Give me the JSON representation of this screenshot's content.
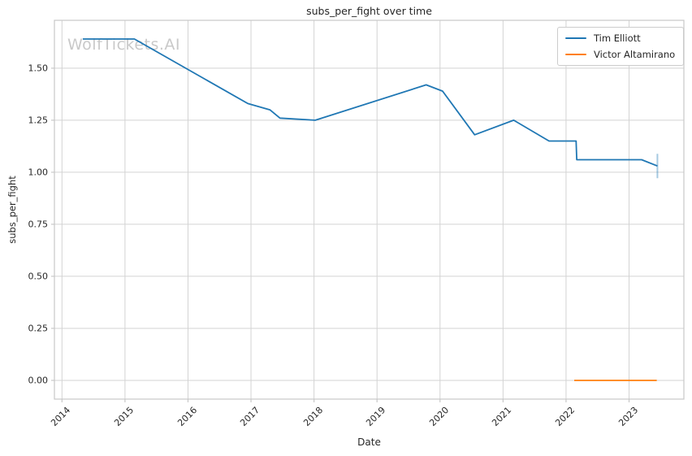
{
  "watermark": {
    "text": "WolfTickets.AI"
  },
  "colors": {
    "tim_elliott": "#1f77b4",
    "victor_altamirano": "#ff7f0e",
    "grid": "#d3d3d3",
    "spine": "#c8c8c8",
    "text": "#262626",
    "watermark": "#c9c9c9"
  },
  "chart_data": {
    "type": "line",
    "title": "subs_per_fight over time",
    "xlabel": "Date",
    "ylabel": "subs_per_fight",
    "grid": true,
    "legend_position": "upper right",
    "xlim": [
      2013.88,
      2023.87
    ],
    "ylim": [
      -0.09,
      1.73
    ],
    "xticks": [
      "2014",
      "2015",
      "2016",
      "2017",
      "2018",
      "2019",
      "2020",
      "2021",
      "2022",
      "2023"
    ],
    "yticks": [
      "0.00",
      "0.25",
      "0.50",
      "0.75",
      "1.00",
      "1.25",
      "1.50"
    ],
    "series": [
      {
        "name": "Tim Elliott",
        "color": "#1f77b4",
        "end_tick": true,
        "points": [
          [
            2014.33,
            1.64
          ],
          [
            2015.15,
            1.64
          ],
          [
            2016.95,
            1.33
          ],
          [
            2017.3,
            1.3
          ],
          [
            2017.46,
            1.26
          ],
          [
            2018.02,
            1.25
          ],
          [
            2019.78,
            1.42
          ],
          [
            2020.04,
            1.39
          ],
          [
            2020.55,
            1.18
          ],
          [
            2021.17,
            1.25
          ],
          [
            2021.73,
            1.15
          ],
          [
            2022.16,
            1.15
          ],
          [
            2022.17,
            1.06
          ],
          [
            2023.2,
            1.06
          ],
          [
            2023.45,
            1.03
          ]
        ]
      },
      {
        "name": "Victor Altamirano",
        "color": "#ff7f0e",
        "end_tick": false,
        "points": [
          [
            2022.13,
            0.0
          ],
          [
            2023.44,
            0.0
          ]
        ]
      }
    ]
  }
}
